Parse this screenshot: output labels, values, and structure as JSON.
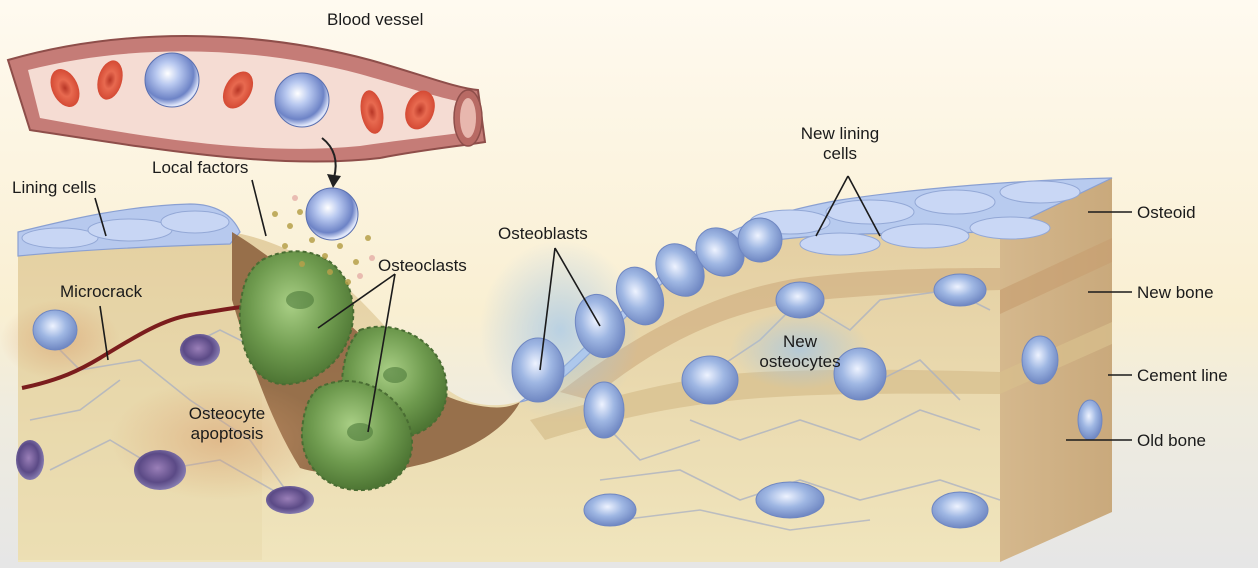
{
  "labels": {
    "blood_vessel": "Blood vessel",
    "local_factors": "Local factors",
    "lining_cells": "Lining cells",
    "osteoclasts": "Osteoclasts",
    "osteoblasts": "Osteoblasts",
    "new_lining_cells": "New lining cells",
    "microcrack": "Microcrack",
    "new_osteocytes": "New osteocytes",
    "osteocyte_apoptosis": "Osteocyte apoptosis",
    "osteoid": "Osteoid",
    "new_bone": "New bone",
    "cement_line": "Cement line",
    "old_bone": "Old bone"
  },
  "colors": {
    "background_top": "#fbf3dc",
    "background_bottom": "#e9e9e9",
    "vessel_wall": "#c77f7a",
    "vessel_lumen": "#f6ddd5",
    "red_cell": "#d9503c",
    "bone_old": "#eadcb0",
    "bone_new": "#ddc090",
    "osteoid": "#d7ba95",
    "osteoclast": "#6f9a52",
    "resorption_pit": "#8e6440",
    "osteocyte_new": "#9db5e0",
    "osteocyte_dying": "#6a5a90",
    "microcrack": "#7b1d1d"
  }
}
